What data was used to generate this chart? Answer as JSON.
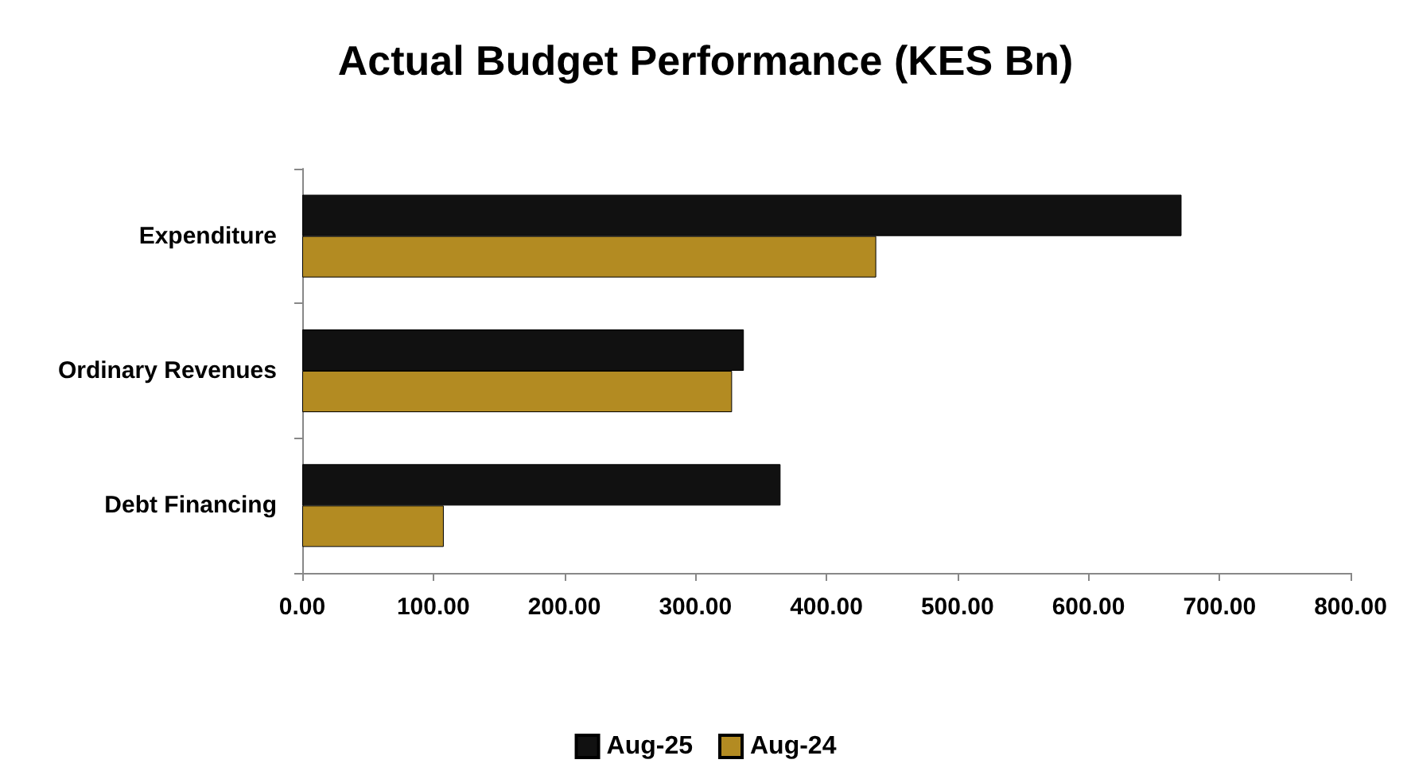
{
  "chart_data": {
    "type": "bar",
    "orientation": "horizontal",
    "title": "Actual Budget Performance (KES Bn)",
    "categories": [
      "Expenditure",
      "Ordinary Revenues",
      "Debt Financing"
    ],
    "series": [
      {
        "name": "Aug-25",
        "color": "#111111",
        "values": [
          671,
          337,
          365
        ]
      },
      {
        "name": "Aug-24",
        "color": "#b38b22",
        "values": [
          438,
          328,
          108
        ]
      }
    ],
    "xlim": [
      0,
      800
    ],
    "xticks": [
      {
        "value": 0,
        "label": "0.00"
      },
      {
        "value": 100,
        "label": "100.00"
      },
      {
        "value": 200,
        "label": "200.00"
      },
      {
        "value": 300,
        "label": "300.00"
      },
      {
        "value": 400,
        "label": "400.00"
      },
      {
        "value": 500,
        "label": "500.00"
      },
      {
        "value": 600,
        "label": "600.00"
      },
      {
        "value": 700,
        "label": "700.00"
      },
      {
        "value": 800,
        "label": "800.00"
      }
    ],
    "grid": false,
    "legend": "bottom"
  }
}
